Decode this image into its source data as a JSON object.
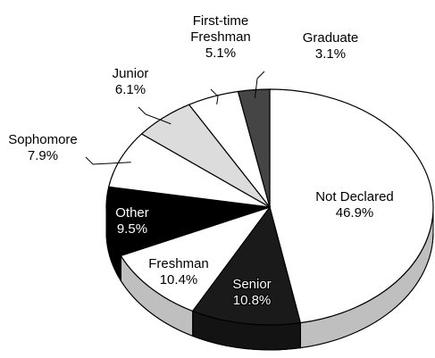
{
  "chart_data": {
    "type": "pie3d",
    "categories": [
      "Not Declared",
      "Senior",
      "Freshman",
      "Other",
      "Sophomore",
      "Junior",
      "First-time Freshman",
      "Graduate"
    ],
    "values": [
      46.9,
      10.8,
      10.4,
      9.5,
      7.9,
      6.1,
      5.1,
      3.1
    ],
    "value_labels": [
      "46.9%",
      "10.8%",
      "10.4%",
      "9.5%",
      "7.9%",
      "6.1%",
      "5.1%",
      "3.1%"
    ],
    "colors": [
      "#ffffff",
      "#1a1a1a",
      "#ffffff",
      "#000000",
      "#ffffff",
      "#dcdcdc",
      "#ffffff",
      "#454545"
    ]
  }
}
